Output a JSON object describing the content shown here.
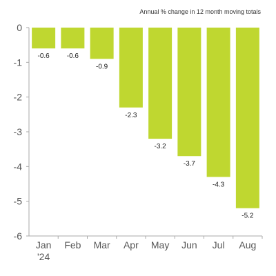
{
  "chart_data": {
    "type": "bar",
    "title": "",
    "subtitle": "Annual % change in 12 month moving totals",
    "xlabel": "",
    "ylabel": "",
    "categories": [
      "Jan",
      "Feb",
      "Mar",
      "Apr",
      "May",
      "Jun",
      "Jul",
      "Aug"
    ],
    "category_sublabels": [
      "'24",
      "",
      "",
      "",
      "",
      "",
      "",
      ""
    ],
    "values": [
      -0.6,
      -0.6,
      -0.9,
      -2.3,
      -3.2,
      -3.7,
      -4.3,
      -5.2
    ],
    "data_labels": [
      "-0.6",
      "-0.6",
      "-0.9",
      "-2.3",
      "-3.2",
      "-3.7",
      "-4.3",
      "-5.2"
    ],
    "ylim": [
      -6,
      0
    ],
    "yticks": [
      0,
      -1,
      -2,
      -3,
      -4,
      -5,
      -6
    ],
    "ytick_labels": [
      "0",
      "-1",
      "-2",
      "-3",
      "-4",
      "-5",
      "-6"
    ],
    "grid": false,
    "legend": "none",
    "colors": {
      "bar": "#bfd730",
      "axis": "#aaaaaa",
      "text": "#555555",
      "label": "#222222"
    }
  }
}
